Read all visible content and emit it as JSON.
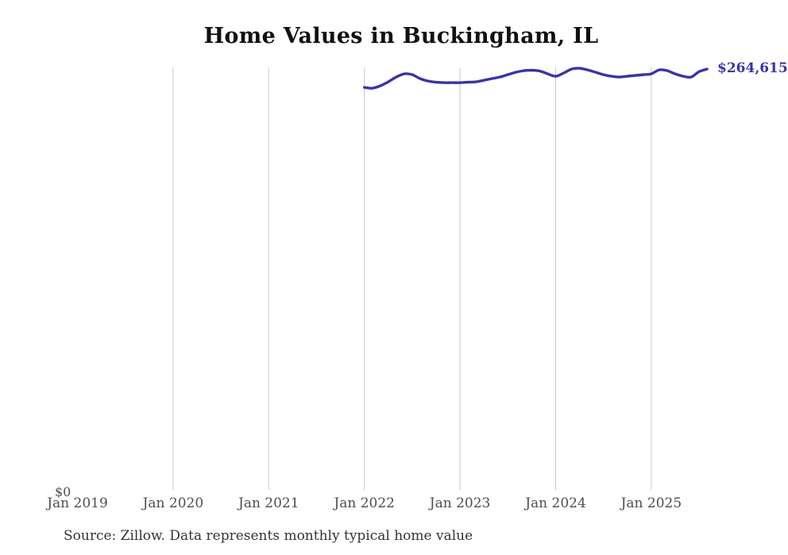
{
  "chart_data": {
    "type": "line",
    "title": "Home Values in Buckingham, IL",
    "series_name": "Monthly typical home value",
    "months": [
      "Jan 2022",
      "Feb 2022",
      "Mar 2022",
      "Apr 2022",
      "May 2022",
      "Jun 2022",
      "Jul 2022",
      "Aug 2022",
      "Sep 2022",
      "Oct 2022",
      "Nov 2022",
      "Dec 2022",
      "Jan 2023",
      "Feb 2023",
      "Mar 2023",
      "Apr 2023",
      "May 2023",
      "Jun 2023",
      "Jul 2023",
      "Aug 2023",
      "Sep 2023",
      "Oct 2023",
      "Nov 2023",
      "Dec 2023",
      "Jan 2024",
      "Feb 2024",
      "Mar 2024",
      "Apr 2024",
      "May 2024",
      "Jun 2024",
      "Jul 2024",
      "Aug 2024",
      "Sep 2024",
      "Oct 2024",
      "Nov 2024",
      "Dec 2024",
      "Jan 2025",
      "Feb 2025",
      "Mar 2025",
      "Apr 2025",
      "May 2025",
      "Jun 2025",
      "Jul 2025",
      "Aug 2025"
    ],
    "values": [
      253100,
      252600,
      254100,
      256600,
      259600,
      261600,
      261100,
      258600,
      257100,
      256400,
      256100,
      256100,
      256100,
      256400,
      256600,
      257600,
      258600,
      259600,
      261100,
      262600,
      263600,
      263900,
      263400,
      261600,
      260100,
      262100,
      264600,
      265100,
      264100,
      262600,
      261100,
      260100,
      259600,
      260100,
      260600,
      261100,
      261600,
      264100,
      263600,
      261600,
      260100,
      259600,
      263000,
      264615
    ],
    "end_value": 264615,
    "end_value_label": "$264,615",
    "y_zero_label": "$0",
    "ylim": [
      0,
      265100
    ],
    "grid": "vertical-only",
    "legend": "none",
    "x_ticks": [
      {
        "label": "Jan 2019",
        "gridline": false
      },
      {
        "label": "Jan 2020",
        "gridline": true
      },
      {
        "label": "Jan 2021",
        "gridline": true
      },
      {
        "label": "Jan 2022",
        "gridline": true
      },
      {
        "label": "Jan 2023",
        "gridline": true
      },
      {
        "label": "Jan 2024",
        "gridline": true
      },
      {
        "label": "Jan 2025",
        "gridline": true
      }
    ],
    "line_color": "#3a34a3",
    "end_label_color": "#3b35a7",
    "gridline_color": "#c9c9c9",
    "axis_label_color": "#4e4e52",
    "source": "Source: Zillow. Data represents monthly typical home value"
  }
}
